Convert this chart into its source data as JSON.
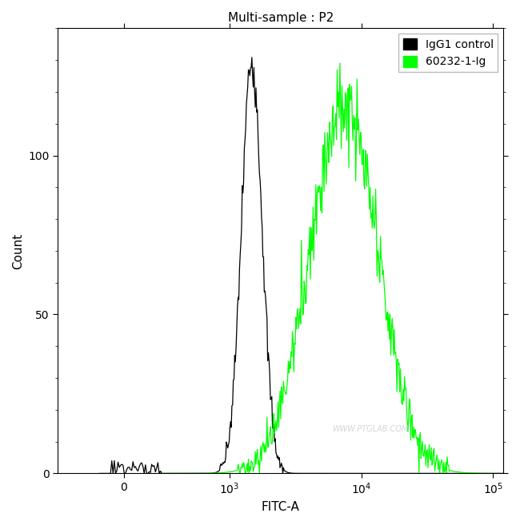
{
  "title": "Multi-sample : P2",
  "xlabel": "FITC-A",
  "ylabel": "Count",
  "ylim": [
    0,
    140
  ],
  "yticks": [
    0,
    50,
    100
  ],
  "legend_labels": [
    "IgG1 control",
    "60232-1-Ig"
  ],
  "watermark": "WWW.PTGLAB.COM",
  "background_color": "#ffffff",
  "line_color_black": "#000000",
  "line_color_green": "#00ff00",
  "black_log_mu": 7.3,
  "black_log_sigma": 0.18,
  "black_peak_height": 130,
  "green_log_mu": 8.9,
  "green_log_sigma": 0.6,
  "green_peak_height": 115,
  "n_curve_points": 500,
  "noise_scale_black": 4.0,
  "noise_scale_green": 7.0,
  "seed_black": 7,
  "seed_green": 13,
  "linthresh": 300,
  "linscale": 0.25,
  "xlim_low": -500,
  "xlim_high": 120000
}
